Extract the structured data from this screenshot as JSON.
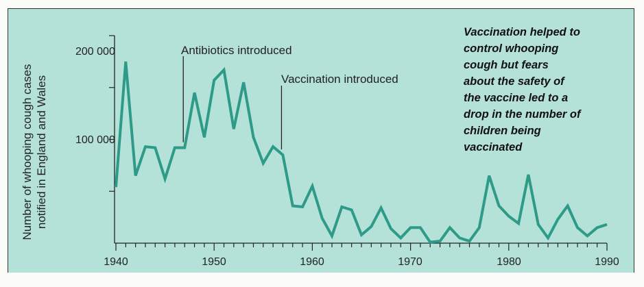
{
  "chart_data": {
    "type": "line",
    "title": "",
    "xlabel": "",
    "ylabel": [
      "Number of whooping cough  cases",
      "notified in England and Wales"
    ],
    "xlim": [
      1940,
      1990
    ],
    "ylim": [
      0,
      200000
    ],
    "x_ticks": [
      "1940",
      "1950",
      "1960",
      "1970",
      "1980",
      "1990"
    ],
    "y_ticks": [
      "200 000",
      "100 000"
    ],
    "grid": false,
    "series": [
      {
        "name": "Whooping cough cases",
        "color": "#2e9a88",
        "x": [
          1940,
          1941,
          1942,
          1943,
          1944,
          1945,
          1946,
          1947,
          1948,
          1949,
          1950,
          1951,
          1952,
          1953,
          1954,
          1955,
          1956,
          1957,
          1958,
          1959,
          1960,
          1961,
          1962,
          1963,
          1964,
          1965,
          1966,
          1967,
          1968,
          1969,
          1970,
          1971,
          1972,
          1973,
          1974,
          1975,
          1976,
          1977,
          1978,
          1979,
          1980,
          1981,
          1982,
          1983,
          1984,
          1985,
          1986,
          1987,
          1988,
          1989,
          1990
        ],
        "values": [
          54000,
          175000,
          65000,
          93000,
          92000,
          62000,
          92000,
          92000,
          145000,
          102000,
          157000,
          167000,
          110000,
          155000,
          102000,
          77000,
          93000,
          85000,
          36000,
          35000,
          55000,
          24000,
          7000,
          35000,
          32000,
          8000,
          16000,
          34000,
          14000,
          5000,
          15000,
          15000,
          1000,
          2000,
          15000,
          5000,
          2000,
          15000,
          65000,
          36000,
          26000,
          19000,
          66000,
          18000,
          5000,
          23000,
          36000,
          15000,
          7000,
          15000,
          18000
        ]
      }
    ],
    "annotations": [
      {
        "text": "Antibiotics introduced",
        "x": 1947
      },
      {
        "text": "Vaccination introduced",
        "x": 1957
      }
    ],
    "note_lines": [
      "Vaccination helped to",
      "control whooping",
      "cough but fears",
      "about the safety of",
      "the vaccine led to a",
      "drop in the number of",
      "children being",
      "vaccinated"
    ]
  }
}
